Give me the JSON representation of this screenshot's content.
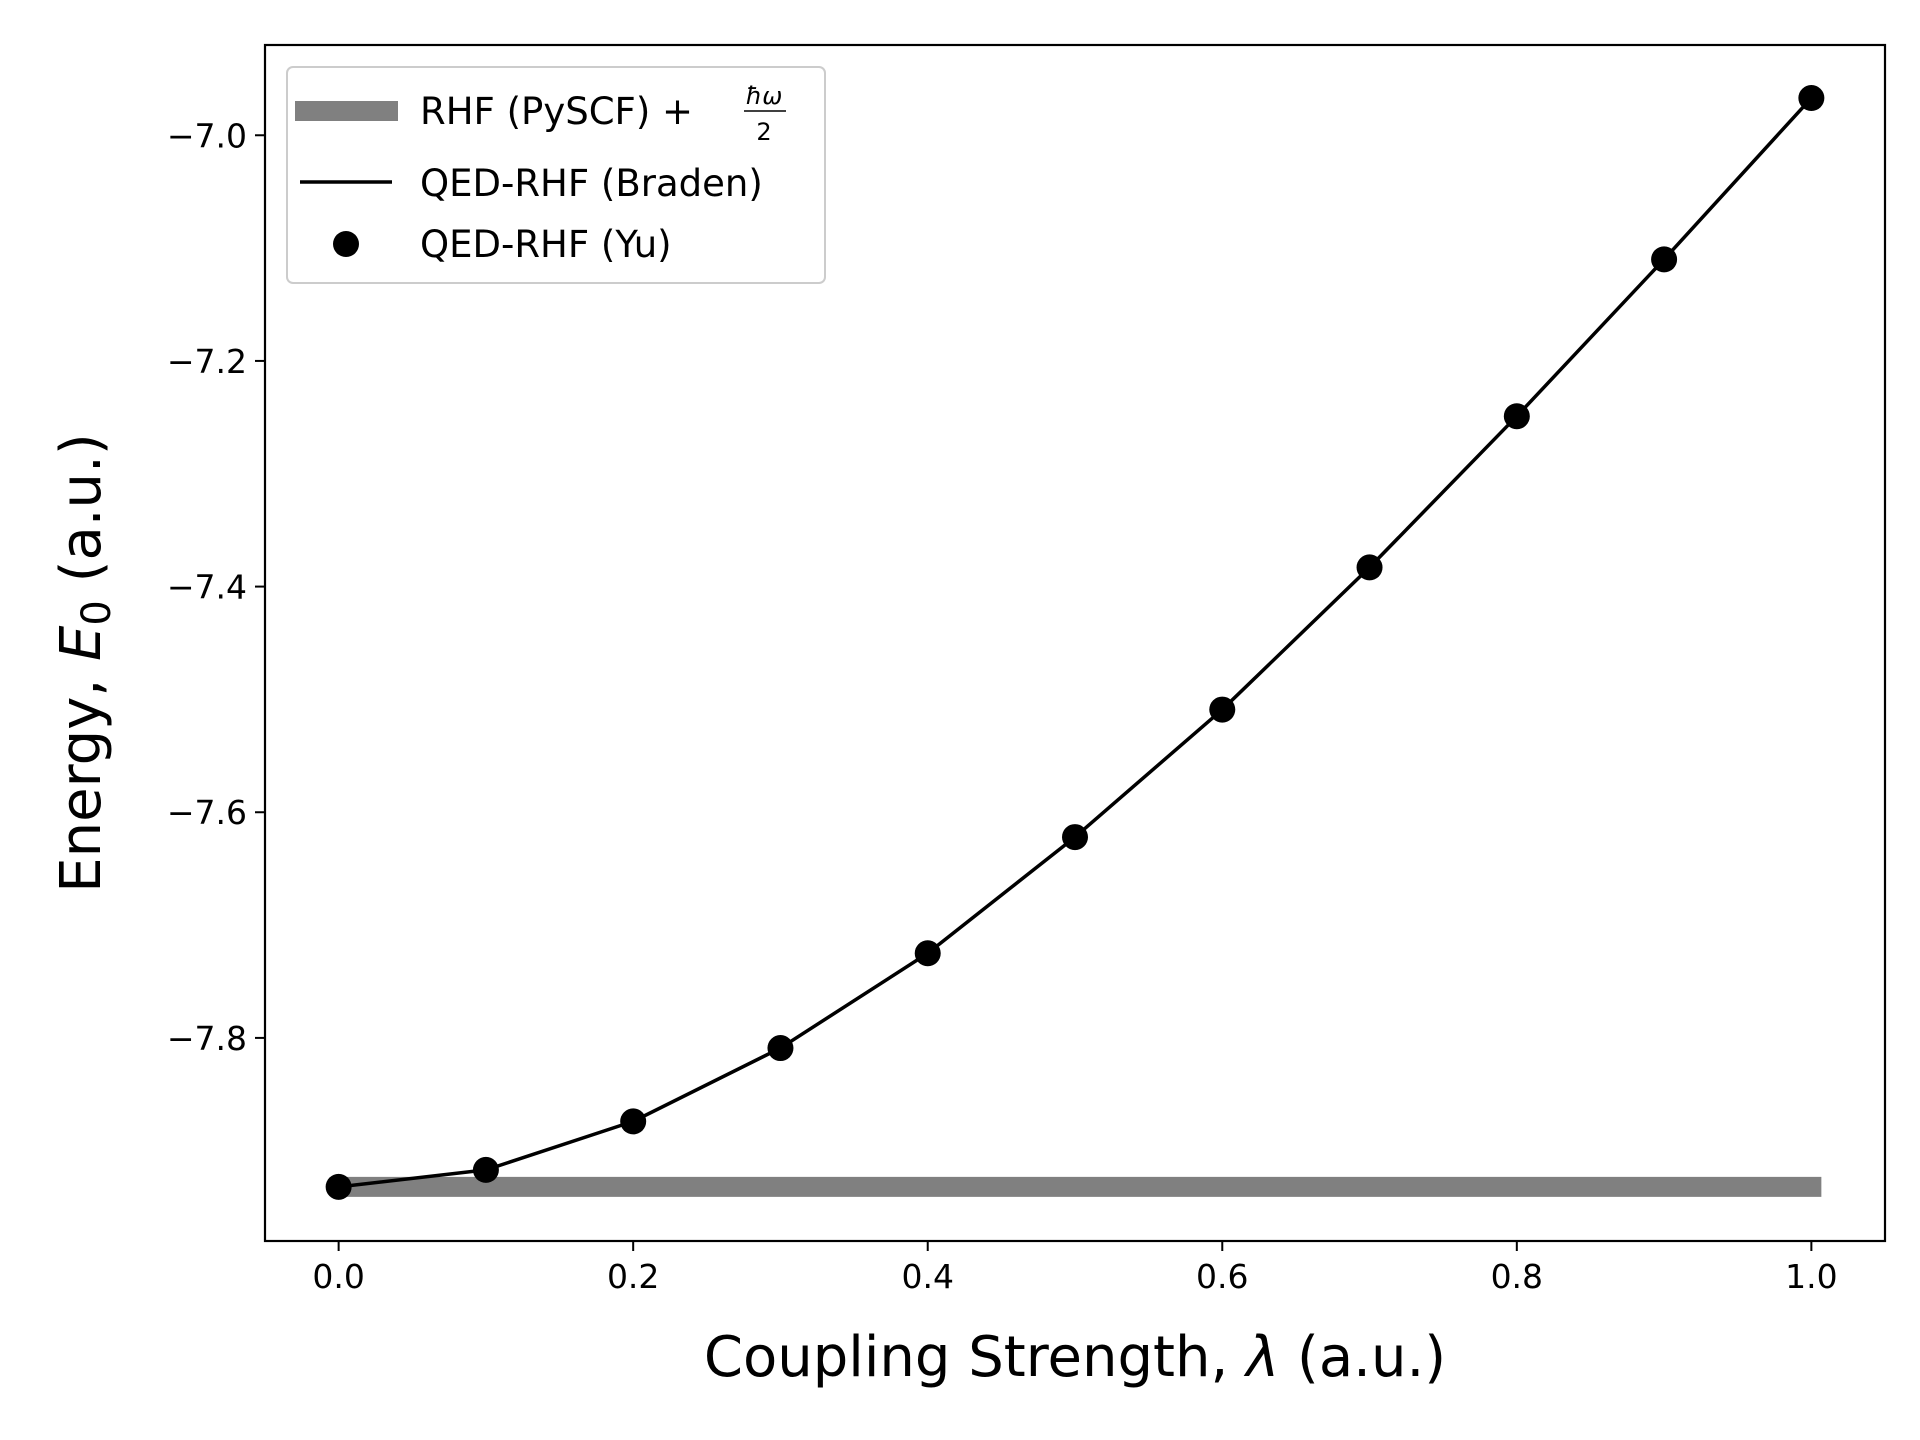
{
  "chart_data": {
    "type": "line",
    "xlabel": "Coupling Strength, λ (a.u.)",
    "xlabel_parts": {
      "pre": "Coupling Strength, ",
      "sym": "λ",
      "post": " (a.u.)"
    },
    "ylabel": "Energy, E0 (a.u.)",
    "ylabel_parts": {
      "pre": "Energy, ",
      "sym": "E",
      "sub": "0",
      "post": " (a.u.)"
    },
    "xlim": [
      -0.05,
      1.05
    ],
    "ylim": [
      -7.98,
      -6.92
    ],
    "xticks": [
      0.0,
      0.2,
      0.4,
      0.6,
      0.8,
      1.0
    ],
    "xtick_labels": [
      "0.0",
      "0.2",
      "0.4",
      "0.6",
      "0.8",
      "1.0"
    ],
    "yticks": [
      -7.0,
      -7.2,
      -7.4,
      -7.6,
      -7.8
    ],
    "ytick_labels": [
      "−7.0",
      "−7.2",
      "−7.4",
      "−7.6",
      "−7.8"
    ],
    "grid": false,
    "legend_placement": "upper-left",
    "series": [
      {
        "name": "RHF (PySCF) + ħω/2",
        "legend_parts": {
          "pre": "RHF (PySCF) + ",
          "num": "ħω",
          "den": "2"
        },
        "style": "thick-line",
        "color": "#808080",
        "x": [
          0.0,
          1.0
        ],
        "values": [
          -7.932,
          -7.932
        ]
      },
      {
        "name": "QED-RHF (Braden)",
        "style": "line",
        "color": "#000000",
        "x": [
          0.0,
          0.1,
          0.2,
          0.3,
          0.4,
          0.5,
          0.6,
          0.7,
          0.8,
          0.9,
          1.0
        ],
        "values": [
          -7.932,
          -7.917,
          -7.874,
          -7.809,
          -7.725,
          -7.622,
          -7.509,
          -7.383,
          -7.249,
          -7.11,
          -6.967
        ]
      },
      {
        "name": "QED-RHF (Yu)",
        "style": "markers",
        "color": "#000000",
        "x": [
          0.0,
          0.1,
          0.2,
          0.3,
          0.4,
          0.5,
          0.6,
          0.7,
          0.8,
          0.9,
          1.0
        ],
        "values": [
          -7.932,
          -7.917,
          -7.874,
          -7.809,
          -7.725,
          -7.622,
          -7.509,
          -7.383,
          -7.249,
          -7.11,
          -6.967
        ]
      }
    ]
  }
}
